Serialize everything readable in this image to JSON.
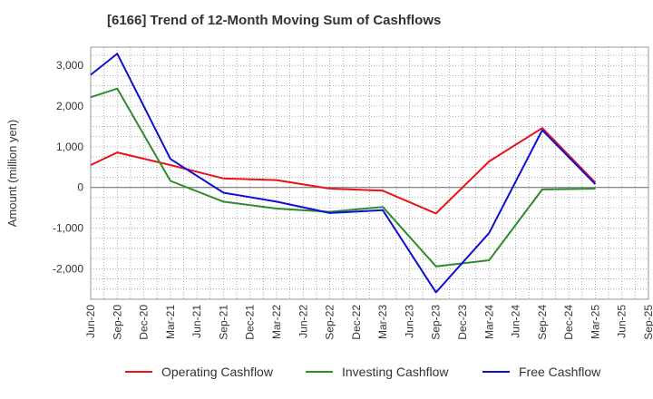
{
  "chart_data": {
    "type": "line",
    "title": "[6166]  Trend of 12-Month Moving Sum of Cashflows",
    "xlabel": "",
    "ylabel": "Amount (million yen)",
    "categories": [
      "Jun-20",
      "Sep-20",
      "Dec-20",
      "Mar-21",
      "Jun-21",
      "Sep-21",
      "Dec-21",
      "Mar-22",
      "Jun-22",
      "Sep-22",
      "Dec-22",
      "Mar-23",
      "Jun-23",
      "Sep-23",
      "Dec-23",
      "Mar-24",
      "Jun-24",
      "Sep-24",
      "Dec-24",
      "Mar-25",
      "Jun-25",
      "Sep-25"
    ],
    "ylim": [
      -2750,
      3450
    ],
    "yticks": [
      -2000,
      -1000,
      0,
      1000,
      2000,
      3000
    ],
    "ytick_labels": [
      "-2,000",
      "-1,000",
      "0",
      "1,000",
      "2,000",
      "3,000"
    ],
    "grid": true,
    "legend_position": "bottom",
    "series": [
      {
        "name": "Operating Cashflow",
        "color": "#e8141c",
        "points": [
          [
            0,
            550
          ],
          [
            1,
            860
          ],
          [
            3,
            550
          ],
          [
            5,
            220
          ],
          [
            7,
            180
          ],
          [
            9,
            -30
          ],
          [
            11,
            -80
          ],
          [
            13,
            -640
          ],
          [
            15,
            640
          ],
          [
            17,
            1460
          ],
          [
            19,
            120
          ]
        ]
      },
      {
        "name": "Investing Cashflow",
        "color": "#2e8b2e",
        "points": [
          [
            0,
            2220
          ],
          [
            1,
            2430
          ],
          [
            3,
            160
          ],
          [
            5,
            -350
          ],
          [
            7,
            -520
          ],
          [
            9,
            -600
          ],
          [
            11,
            -480
          ],
          [
            13,
            -1940
          ],
          [
            15,
            -1790
          ],
          [
            17,
            -50
          ],
          [
            19,
            -30
          ]
        ]
      },
      {
        "name": "Free Cashflow",
        "color": "#1010d0",
        "points": [
          [
            0,
            2770
          ],
          [
            1,
            3290
          ],
          [
            3,
            700
          ],
          [
            5,
            -130
          ],
          [
            7,
            -350
          ],
          [
            9,
            -630
          ],
          [
            11,
            -560
          ],
          [
            13,
            -2580
          ],
          [
            15,
            -1120
          ],
          [
            17,
            1410
          ],
          [
            19,
            80
          ]
        ]
      }
    ]
  }
}
